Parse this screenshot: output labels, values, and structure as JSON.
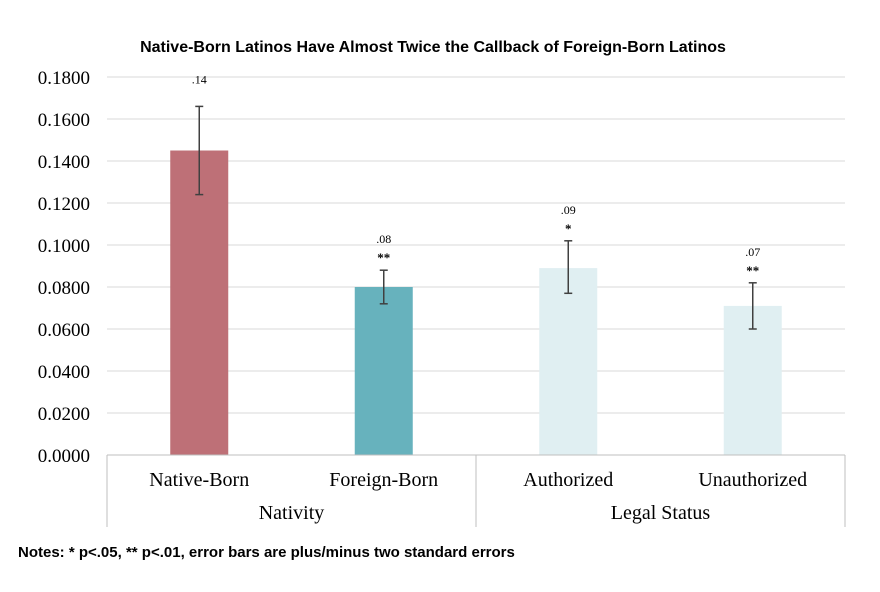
{
  "chart_data": {
    "type": "bar",
    "title": "Native-Born Latinos Have Almost Twice the Callback of Foreign-Born Latinos",
    "xlabel": "",
    "ylabel": "",
    "ylim": [
      0,
      0.18
    ],
    "yticks": [
      "0.0000",
      "0.0200",
      "0.0400",
      "0.0600",
      "0.0800",
      "0.1000",
      "0.1200",
      "0.1400",
      "0.1600",
      "0.1800"
    ],
    "yticks_values": [
      0,
      0.02,
      0.04,
      0.06,
      0.08,
      0.1,
      0.12,
      0.14,
      0.16,
      0.18
    ],
    "grid": true,
    "legend": "none",
    "categories": [
      "Native-Born",
      "Foreign-Born",
      "Authorized",
      "Unauthorized"
    ],
    "groups": [
      {
        "name": "Nativity",
        "categories": [
          "Native-Born",
          "Foreign-Born"
        ]
      },
      {
        "name": "Legal Status",
        "categories": [
          "Authorized",
          "Unauthorized"
        ]
      }
    ],
    "values": [
      0.145,
      0.08,
      0.089,
      0.071
    ],
    "error_low": [
      0.124,
      0.072,
      0.077,
      0.06
    ],
    "error_high": [
      0.166,
      0.088,
      0.102,
      0.082
    ],
    "data_labels": [
      ".14",
      ".08",
      ".09",
      ".07"
    ],
    "significance": [
      "",
      "**",
      "*",
      "**"
    ],
    "colors": [
      "#be7077",
      "#67b2bd",
      "#e0eff2",
      "#e0eff2"
    ]
  },
  "notes": "Notes: * p<.05, ** p<.01, error bars are plus/minus two standard errors"
}
